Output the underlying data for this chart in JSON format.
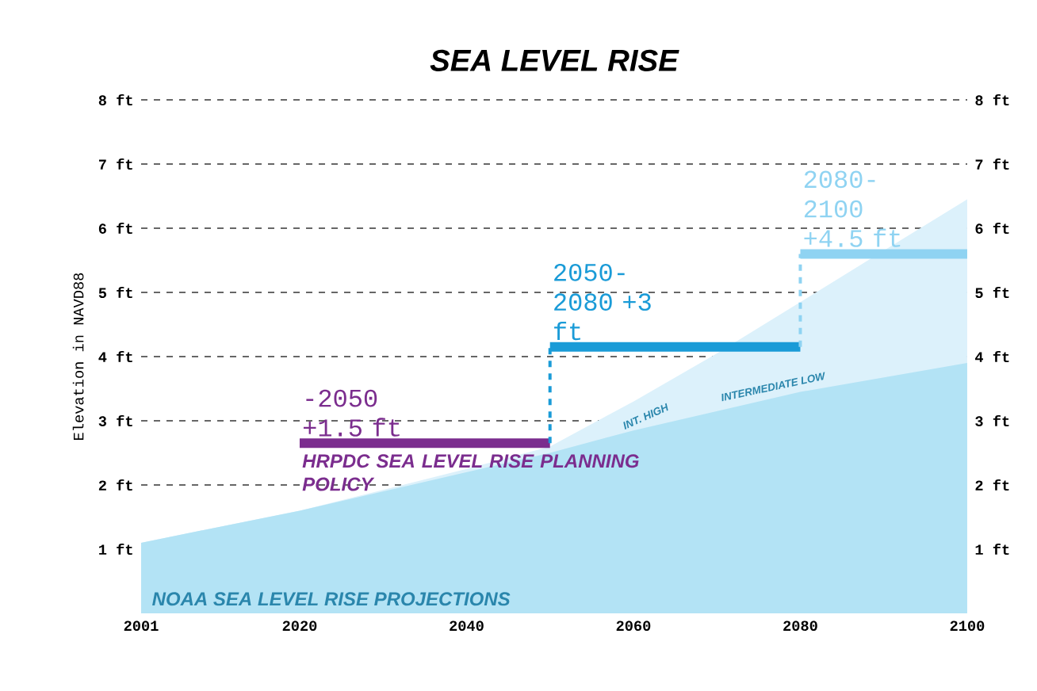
{
  "chart_data": {
    "type": "area",
    "title": "SEA LEVEL RISE",
    "ylabel": "Elevation in NAVD88",
    "xlim": [
      2001,
      2100
    ],
    "xticks": [
      2001,
      2020,
      2040,
      2060,
      2080,
      2100
    ],
    "ylim": [
      0,
      8
    ],
    "yticks": [
      {
        "value": 1,
        "label": "1 ft"
      },
      {
        "value": 2,
        "label": "2 ft"
      },
      {
        "value": 3,
        "label": "3 ft"
      },
      {
        "value": 4,
        "label": "4 ft"
      },
      {
        "value": 5,
        "label": "5 ft"
      },
      {
        "value": 6,
        "label": "6 ft"
      },
      {
        "value": 7,
        "label": "7 ft"
      },
      {
        "value": 8,
        "label": "8 ft"
      }
    ],
    "y2lim": [
      0,
      8
    ],
    "y2ticks": [
      {
        "value": 1,
        "label": "1 ft"
      },
      {
        "value": 2,
        "label": "2 ft"
      },
      {
        "value": 3,
        "label": "3 ft"
      },
      {
        "value": 4,
        "label": "4 ft"
      },
      {
        "value": 5,
        "label": "5 ft"
      },
      {
        "value": 6,
        "label": "6 ft"
      },
      {
        "value": 7,
        "label": "7 ft"
      },
      {
        "value": 8,
        "label": "8 ft"
      }
    ],
    "grid": "y",
    "annotations": [
      {
        "text": "HRPDC SEA LEVEL RISE PLANNING POLICY",
        "x": 2020,
        "y": 2.65
      },
      "NOAA SEA LEVEL RISE PROJECTIONS"
    ],
    "series": [
      {
        "name": "INT. HIGH",
        "color": "#dcf1fb",
        "x": [
          2001,
          2020,
          2040,
          2050,
          2060,
          2070,
          2080,
          2090,
          2100
        ],
        "values": [
          1.1,
          1.6,
          2.25,
          2.6,
          3.3,
          4.05,
          4.85,
          5.65,
          6.45
        ]
      },
      {
        "name": "INTERMEDIATE LOW",
        "color": "#b3e3f5",
        "x": [
          2001,
          2020,
          2040,
          2050,
          2060,
          2080,
          2100
        ],
        "values": [
          1.1,
          1.6,
          2.2,
          2.5,
          2.85,
          3.45,
          3.9
        ]
      },
      {
        "name": "-2050 +1.5 ft",
        "type": "line",
        "color": "#7b2d8e",
        "x": [
          2020,
          2050
        ],
        "values": [
          2.65,
          2.65
        ]
      },
      {
        "type": "line",
        "color": "#1a9bd7",
        "line_style": "dashed",
        "x": [
          2050,
          2050
        ],
        "values": [
          2.65,
          4.15
        ]
      },
      {
        "name": "2050-2080 +3 ft",
        "type": "line",
        "color": "#1a9bd7",
        "x": [
          2050,
          2080
        ],
        "values": [
          4.15,
          4.15
        ]
      },
      {
        "type": "line",
        "color": "#8fd3f2",
        "line_style": "dashed",
        "x": [
          2080,
          2080
        ],
        "values": [
          4.15,
          5.6
        ]
      },
      {
        "name": "2080-2100 +4.5 ft",
        "type": "line",
        "color": "#8fd3f2",
        "x": [
          2080,
          2100
        ],
        "values": [
          5.6,
          5.6
        ]
      }
    ]
  }
}
